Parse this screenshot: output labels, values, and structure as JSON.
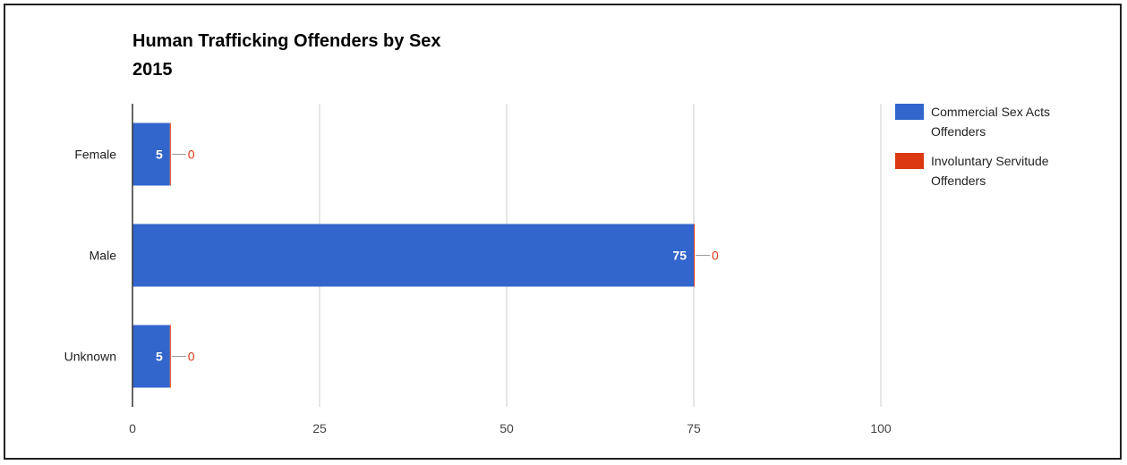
{
  "chart_data": {
    "type": "bar",
    "orientation": "horizontal",
    "title": "Human Trafficking Offenders by Sex",
    "subtitle": "2015",
    "categories": [
      "Female",
      "Male",
      "Unknown"
    ],
    "series": [
      {
        "name": "Commercial Sex Acts Offenders",
        "name_lines": [
          "Commercial Sex Acts",
          "Offenders"
        ],
        "values": [
          5,
          75,
          5
        ],
        "color": "#3366cc"
      },
      {
        "name": "Involuntary Servitude Offenders",
        "name_lines": [
          "Involuntary Servitude",
          "Offenders"
        ],
        "values": [
          0,
          0,
          0
        ],
        "color": "#dc3912"
      }
    ],
    "x_ticks": [
      "0",
      "25",
      "50",
      "75",
      "100"
    ],
    "xlim": [
      0,
      100
    ],
    "grid": true,
    "legend_position": "right",
    "data_labels": true
  }
}
